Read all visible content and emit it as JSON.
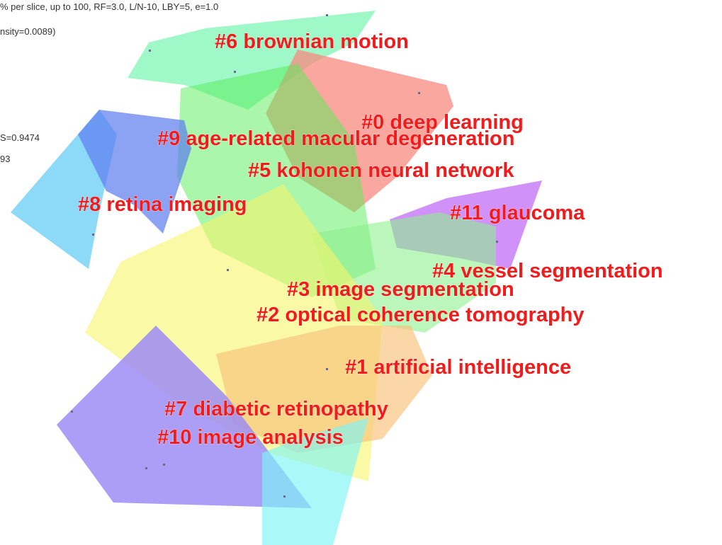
{
  "header": {
    "lines": [
      "% per slice, up to 100, RF=3.0, L/N-10, LBY=5, e=1.0",
      "nsity=0.0089)",
      "S=0.9474",
      "93"
    ]
  },
  "clusters": [
    "#6 brownian motion",
    "#0 deep learning",
    "#9 age-related macular degeneration",
    "#5 kohonen neural network",
    "#8 retina imaging",
    "#11 glaucoma",
    "#4 vessel segmentation",
    "#3 image segmentation",
    "#2 optical coherence tomography",
    "#1 artificial intelligence",
    "#7 diabetic retinopathy",
    "#10 image analysis"
  ]
}
